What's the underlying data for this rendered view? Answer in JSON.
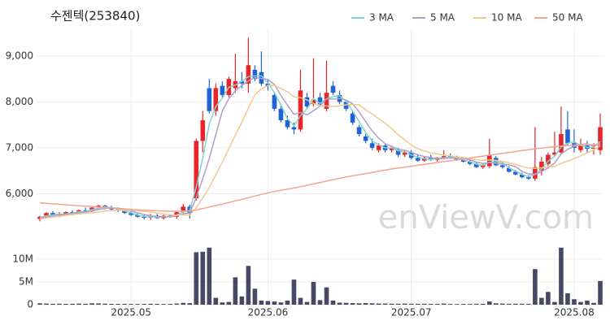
{
  "chart_data": [
    {
      "type": "candlestick",
      "title": "수젠텍(253840)",
      "watermark": "enViewV.com",
      "categories": [
        null,
        null,
        null,
        null,
        null,
        null,
        null,
        null,
        null,
        null,
        null,
        null,
        null,
        null,
        "2025.05",
        null,
        null,
        null,
        null,
        null,
        null,
        null,
        null,
        null,
        null,
        null,
        null,
        null,
        null,
        null,
        null,
        null,
        null,
        null,
        null,
        "2025.06",
        null,
        null,
        null,
        null,
        null,
        null,
        null,
        null,
        null,
        null,
        null,
        null,
        null,
        null,
        null,
        null,
        null,
        null,
        null,
        null,
        null,
        "2025.07",
        null,
        null,
        null,
        null,
        null,
        null,
        null,
        null,
        null,
        null,
        null,
        null,
        null,
        null,
        null,
        null,
        null,
        null,
        null,
        null,
        null,
        null,
        null,
        null,
        "2025.08",
        null,
        null,
        null,
        null
      ],
      "open": [
        5450,
        5500,
        5580,
        5530,
        5560,
        5600,
        5580,
        5640,
        5620,
        5700,
        5740,
        5700,
        5660,
        5640,
        5580,
        5540,
        5500,
        5480,
        5520,
        5470,
        5520,
        5500,
        5600,
        5720,
        5900,
        7150,
        8300,
        7800,
        8350,
        8150,
        8300,
        8450,
        8400,
        8700,
        8650,
        8400,
        8150,
        7850,
        7600,
        7450,
        7400,
        8100,
        7950,
        8100,
        7850,
        8350,
        8150,
        8000,
        7750,
        7450,
        7250,
        7100,
        6950,
        7050,
        6950,
        6950,
        6850,
        6900,
        6780,
        6720,
        6780,
        6740,
        6790,
        6820,
        6780,
        6740,
        6700,
        6650,
        6580,
        6600,
        6780,
        6620,
        6560,
        6480,
        6420,
        6360,
        6330,
        6500,
        6650,
        6850,
        6900,
        7400,
        7100,
        6950,
        7050,
        6980,
        6950
      ],
      "high": [
        5520,
        5600,
        5620,
        5600,
        5620,
        5640,
        5660,
        5700,
        5720,
        5760,
        5760,
        5740,
        5700,
        5680,
        5620,
        5580,
        5540,
        5560,
        5560,
        5540,
        5560,
        5620,
        5780,
        5760,
        7200,
        7800,
        8500,
        8400,
        8450,
        8550,
        9050,
        8650,
        9400,
        8800,
        9100,
        8500,
        8200,
        7950,
        7700,
        7550,
        8700,
        8200,
        8950,
        8200,
        8900,
        8450,
        8250,
        8050,
        7800,
        7500,
        7300,
        7200,
        7100,
        7100,
        7050,
        7000,
        6950,
        6950,
        6850,
        6800,
        6850,
        6800,
        6950,
        6880,
        6830,
        6800,
        6750,
        6700,
        6650,
        7200,
        6820,
        6680,
        6600,
        6520,
        6460,
        6400,
        7450,
        6800,
        6900,
        7350,
        7900,
        7800,
        7400,
        7200,
        7150,
        7100,
        7750
      ],
      "low": [
        5400,
        5480,
        5500,
        5490,
        5520,
        5560,
        5560,
        5600,
        5600,
        5660,
        5680,
        5640,
        5600,
        5560,
        5520,
        5480,
        5440,
        5430,
        5460,
        5440,
        5480,
        5460,
        5560,
        5460,
        5850,
        6900,
        7750,
        7700,
        8100,
        8100,
        8200,
        8300,
        8200,
        8450,
        8350,
        8250,
        7800,
        7550,
        7400,
        7300,
        7350,
        7850,
        7900,
        7900,
        7800,
        8150,
        7950,
        7800,
        7500,
        7250,
        7100,
        6950,
        6900,
        6900,
        6900,
        6800,
        6800,
        6750,
        6700,
        6700,
        6720,
        6700,
        6750,
        6760,
        6720,
        6680,
        6620,
        6560,
        6540,
        6560,
        6600,
        6550,
        6460,
        6400,
        6340,
        6300,
        6280,
        6400,
        6600,
        6800,
        6850,
        7050,
        6900,
        6900,
        6900,
        6850,
        6850
      ],
      "close": [
        5500,
        5580,
        5530,
        5560,
        5600,
        5580,
        5640,
        5620,
        5700,
        5740,
        5700,
        5660,
        5640,
        5580,
        5540,
        5500,
        5480,
        5520,
        5470,
        5520,
        5500,
        5600,
        5720,
        5580,
        7150,
        7600,
        7800,
        8300,
        8150,
        8500,
        8450,
        8400,
        8800,
        8500,
        8400,
        8350,
        7850,
        7600,
        7450,
        7400,
        8250,
        7900,
        8050,
        7950,
        8200,
        8200,
        8000,
        7850,
        7550,
        7300,
        7150,
        7000,
        7050,
        6950,
        7000,
        6850,
        6900,
        6780,
        6720,
        6780,
        6740,
        6790,
        6820,
        6780,
        6740,
        6700,
        6650,
        6580,
        6620,
        6850,
        6620,
        6580,
        6480,
        6420,
        6360,
        6330,
        6580,
        6700,
        6850,
        6900,
        7300,
        7100,
        7000,
        7050,
        6980,
        7000,
        7450
      ],
      "up_color": "#e8262a",
      "down_color": "#1f63d6",
      "series": [
        {
          "name": "3 MA",
          "color": "#7fd3cf",
          "values": [
            5480,
            5520,
            5537,
            5557,
            5563,
            5580,
            5607,
            5613,
            5653,
            5687,
            5713,
            5700,
            5667,
            5627,
            5587,
            5540,
            5507,
            5500,
            5490,
            5503,
            5497,
            5540,
            5607,
            5633,
            6150,
            6777,
            7517,
            7900,
            8083,
            8317,
            8367,
            8450,
            8550,
            8567,
            8567,
            8417,
            8200,
            7933,
            7633,
            7483,
            7700,
            7850,
            8067,
            7967,
            8067,
            8117,
            8133,
            8017,
            7800,
            7567,
            7333,
            7150,
            7067,
            7000,
            7000,
            6933,
            6917,
            6843,
            6800,
            6760,
            6747,
            6770,
            6783,
            6797,
            6780,
            6740,
            6697,
            6643,
            6617,
            6683,
            6697,
            6683,
            6560,
            6493,
            6420,
            6370,
            6423,
            6537,
            6710,
            6817,
            7017,
            7100,
            7133,
            7050,
            7010,
            7010,
            7143
          ]
        },
        {
          "name": "5 MA",
          "color": "#b49ec9",
          "values": [
            5470,
            5500,
            5520,
            5540,
            5554,
            5570,
            5582,
            5600,
            5628,
            5656,
            5680,
            5692,
            5688,
            5664,
            5624,
            5584,
            5548,
            5524,
            5502,
            5498,
            5498,
            5522,
            5562,
            5584,
            5914,
            6330,
            6770,
            7286,
            7800,
            8070,
            8240,
            8360,
            8460,
            8530,
            8510,
            8490,
            8380,
            8140,
            7930,
            7730,
            7770,
            7720,
            7810,
            7910,
            8070,
            8060,
            8080,
            8040,
            7960,
            7780,
            7570,
            7370,
            7210,
            7090,
            7030,
            6970,
            6950,
            6900,
            6850,
            6810,
            6790,
            6760,
            6770,
            6780,
            6770,
            6770,
            6740,
            6690,
            6660,
            6680,
            6660,
            6650,
            6630,
            6590,
            6490,
            6430,
            6430,
            6480,
            6560,
            6670,
            6870,
            6970,
            7030,
            7070,
            7090,
            7030,
            7100
          ]
        },
        {
          "name": "10 MA",
          "color": "#f2c98c",
          "values": [
            5450,
            5470,
            5490,
            5510,
            5530,
            5545,
            5560,
            5575,
            5590,
            5605,
            5625,
            5633,
            5644,
            5646,
            5640,
            5632,
            5616,
            5604,
            5581,
            5559,
            5539,
            5533,
            5541,
            5535,
            5696,
            5906,
            6138,
            6416,
            6684,
            6982,
            7277,
            7557,
            7865,
            8157,
            8282,
            8357,
            8362,
            8292,
            8222,
            8112,
            8092,
            8042,
            7967,
            7912,
            7912,
            7897,
            7912,
            7937,
            7947,
            7937,
            7827,
            7737,
            7637,
            7537,
            7417,
            7282,
            7172,
            7065,
            6982,
            6930,
            6889,
            6868,
            6845,
            6828,
            6802,
            6787,
            6762,
            6742,
            6732,
            6739,
            6727,
            6706,
            6672,
            6636,
            6598,
            6561,
            6553,
            6565,
            6588,
            6593,
            6661,
            6713,
            6765,
            6829,
            6891,
            6958,
            7045
          ]
        },
        {
          "name": "50 MA",
          "color": "#f4a391",
          "values": [
            5800,
            5790,
            5780,
            5770,
            5760,
            5750,
            5740,
            5730,
            5720,
            5710,
            5700,
            5690,
            5680,
            5670,
            5660,
            5650,
            5640,
            5635,
            5630,
            5625,
            5620,
            5620,
            5625,
            5625,
            5650,
            5680,
            5710,
            5745,
            5775,
            5810,
            5845,
            5880,
            5915,
            5950,
            5985,
            6020,
            6050,
            6075,
            6100,
            6125,
            6155,
            6185,
            6215,
            6245,
            6275,
            6305,
            6335,
            6365,
            6390,
            6415,
            6440,
            6465,
            6490,
            6515,
            6540,
            6560,
            6580,
            6600,
            6620,
            6640,
            6660,
            6680,
            6700,
            6720,
            6740,
            6760,
            6780,
            6800,
            6820,
            6840,
            6860,
            6880,
            6900,
            6920,
            6940,
            6960,
            6980,
            6995,
            7010,
            7025,
            7040,
            7050,
            7060,
            7065,
            7070,
            7070,
            7070
          ]
        }
      ],
      "ylim": [
        5000,
        9600
      ],
      "yticks": [
        {
          "value": 6000,
          "label": "6,000"
        },
        {
          "value": 7000,
          "label": "7,000"
        },
        {
          "value": 8000,
          "label": "8,000"
        },
        {
          "value": 9000,
          "label": "9,000"
        }
      ],
      "grid": true
    },
    {
      "type": "bar",
      "color": "#464866",
      "values": [
        300000,
        250000,
        200000,
        220000,
        180000,
        200000,
        250000,
        210000,
        300000,
        280000,
        220000,
        180000,
        170000,
        190000,
        160000,
        150000,
        170000,
        200000,
        180000,
        160000,
        170000,
        250000,
        400000,
        350000,
        11500000,
        11600000,
        12500000,
        1500000,
        500000,
        600000,
        6000000,
        1800000,
        8500000,
        3500000,
        900000,
        800000,
        700000,
        500000,
        900000,
        5500000,
        1500000,
        600000,
        5000000,
        1000000,
        3800000,
        900000,
        450000,
        400000,
        350000,
        300000,
        350000,
        300000,
        250000,
        250000,
        220000,
        200000,
        250000,
        200000,
        180000,
        200000,
        170000,
        180000,
        250000,
        160000,
        150000,
        170000,
        160000,
        200000,
        180000,
        700000,
        300000,
        250000,
        200000,
        220000,
        200000,
        180000,
        7800000,
        1500000,
        2800000,
        600000,
        12500000,
        2500000,
        1200000,
        600000,
        900000,
        400000,
        5200000
      ],
      "ylim": [
        0,
        13000000
      ],
      "yticks": [
        0,
        {
          "value": 5000000,
          "label": "5M"
        },
        {
          "value": 10000000,
          "label": "10M"
        }
      ],
      "grid": true
    }
  ]
}
